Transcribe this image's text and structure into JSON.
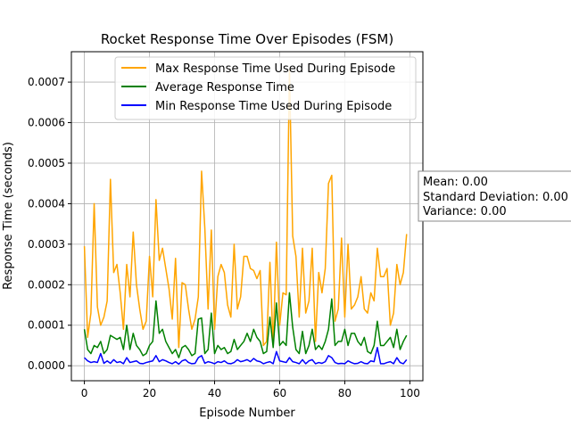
{
  "chart_data": {
    "type": "line",
    "title": "Rocket Response Time Over Episodes (FSM)",
    "xlabel": "Episode Number",
    "ylabel": "Response Time (seconds)",
    "xlim": [
      -4,
      104
    ],
    "ylim": [
      -3.7e-05,
      0.000775
    ],
    "xticks": [
      0,
      20,
      40,
      60,
      80,
      100
    ],
    "xtick_labels": [
      "0",
      "20",
      "40",
      "60",
      "80",
      "100"
    ],
    "yticks": [
      0,
      0.0001,
      0.0002,
      0.0003,
      0.0004,
      0.0005,
      0.0006,
      0.0007
    ],
    "ytick_labels": [
      "0.0000",
      "0.0001",
      "0.0002",
      "0.0003",
      "0.0004",
      "0.0005",
      "0.0006",
      "0.0007"
    ],
    "grid": true,
    "legend_position": "upper right",
    "series": [
      {
        "name": "Max Response Time Used During Episode",
        "color": "#ffa500",
        "values": [
          0.000295,
          7e-05,
          0.00013,
          0.0004,
          0.000145,
          0.0001,
          0.00012,
          0.00016,
          0.00046,
          0.00023,
          0.00025,
          0.00018,
          9e-05,
          0.00025,
          0.00017,
          0.00033,
          0.0002,
          0.00014,
          9e-05,
          0.00011,
          0.00027,
          0.00017,
          0.00041,
          0.00026,
          0.00029,
          0.00024,
          0.00019,
          0.000115,
          0.000265,
          4.5e-05,
          0.000205,
          0.0002,
          0.00014,
          9e-05,
          0.000115,
          0.00017,
          0.00048,
          0.00034,
          0.00014,
          0.000335,
          9e-05,
          0.00022,
          0.00025,
          0.00023,
          0.00015,
          0.00012,
          0.0003,
          0.00014,
          0.00017,
          0.00027,
          0.00027,
          0.00024,
          0.000235,
          0.000215,
          0.000235,
          5e-05,
          6e-05,
          0.000255,
          5e-05,
          0.000305,
          0.0001,
          0.00018,
          0.000175,
          0.00073,
          0.00032,
          0.00027,
          0.00012,
          0.00029,
          0.00013,
          0.00016,
          0.00029,
          6e-05,
          0.00023,
          0.00018,
          0.00024,
          0.00045,
          0.00047,
          0.00011,
          0.00014,
          0.000315,
          0.00012,
          0.0003,
          0.00014,
          0.00015,
          0.00017,
          0.00022,
          0.00014,
          0.00013,
          0.00018,
          0.00016,
          0.00029,
          0.00022,
          0.00022,
          0.00024,
          0.0001,
          0.00013,
          0.00025,
          0.0002,
          0.00023,
          0.000325
        ]
      },
      {
        "name": "Average Response Time",
        "color": "#008000",
        "values": [
          9e-05,
          4e-05,
          3e-05,
          5e-05,
          4.5e-05,
          6e-05,
          3e-05,
          4e-05,
          7.5e-05,
          7e-05,
          6.5e-05,
          7e-05,
          4e-05,
          0.0001,
          4e-05,
          8e-05,
          5e-05,
          4e-05,
          2.5e-05,
          3e-05,
          5e-05,
          6e-05,
          0.00016,
          8e-05,
          9e-05,
          6e-05,
          4.5e-05,
          3e-05,
          4e-05,
          2e-05,
          4.5e-05,
          5e-05,
          4e-05,
          2.5e-05,
          3e-05,
          0.000115,
          0.000118,
          3e-05,
          4e-05,
          0.00013,
          3e-05,
          5e-05,
          4e-05,
          4.5e-05,
          3e-05,
          3.5e-05,
          6.5e-05,
          4e-05,
          5e-05,
          6e-05,
          8e-05,
          6e-05,
          9e-05,
          7e-05,
          6e-05,
          3e-05,
          3.5e-05,
          0.00012,
          4.5e-05,
          0.000155,
          5e-05,
          6e-05,
          5e-05,
          0.00018,
          9.5e-05,
          4e-05,
          3e-05,
          8.5e-05,
          3e-05,
          5e-05,
          9e-05,
          4e-05,
          5e-05,
          4e-05,
          6e-05,
          9e-05,
          0.000165,
          5e-05,
          6e-05,
          6e-05,
          9e-05,
          5e-05,
          8e-05,
          8e-05,
          6e-05,
          5e-05,
          7e-05,
          3.5e-05,
          3e-05,
          5e-05,
          0.00011,
          5e-05,
          5e-05,
          6e-05,
          7e-05,
          4.5e-05,
          9e-05,
          4e-05,
          6e-05,
          7.5e-05
        ]
      },
      {
        "name": "Min Response Time Used During Episode",
        "color": "#0000ff",
        "values": [
          2e-05,
          1.2e-05,
          8e-06,
          1e-05,
          8e-06,
          3e-05,
          6e-06,
          1.2e-05,
          6e-06,
          1.5e-05,
          8e-06,
          1e-05,
          5e-06,
          2e-05,
          8e-06,
          1e-05,
          1.2e-05,
          6e-06,
          5e-06,
          8e-06,
          1e-05,
          1.2e-05,
          2.5e-05,
          1e-05,
          1.5e-05,
          1.2e-05,
          8e-06,
          5e-06,
          1e-05,
          4e-06,
          1.2e-05,
          1.5e-05,
          8e-06,
          5e-06,
          6e-06,
          2e-05,
          2.5e-05,
          6e-06,
          1e-05,
          8e-06,
          5e-06,
          1e-05,
          8e-06,
          1.2e-05,
          6e-06,
          5e-06,
          8e-06,
          1.5e-05,
          1e-05,
          1.2e-05,
          1.5e-05,
          1e-05,
          1.8e-05,
          1.2e-05,
          1e-05,
          5e-06,
          8e-06,
          1e-05,
          5e-06,
          3.5e-05,
          1.2e-05,
          1e-05,
          8e-06,
          2e-05,
          1e-05,
          8e-06,
          5e-06,
          1.5e-05,
          5e-06,
          1.2e-05,
          1.5e-05,
          5e-06,
          8e-06,
          6e-06,
          1e-05,
          2.5e-05,
          2e-05,
          8e-06,
          5e-06,
          6e-06,
          5e-06,
          1.2e-05,
          8e-06,
          5e-06,
          6e-06,
          1e-05,
          6e-06,
          5e-06,
          1.2e-05,
          1e-05,
          4.5e-05,
          5e-06,
          5e-06,
          8e-06,
          1e-05,
          5e-06,
          2e-05,
          8e-06,
          5e-06,
          1.5e-05
        ]
      }
    ],
    "stats_box": {
      "line1": "Mean: 0.00",
      "line2": "Standard Deviation: 0.00",
      "line3": "Variance: 0.00"
    }
  }
}
